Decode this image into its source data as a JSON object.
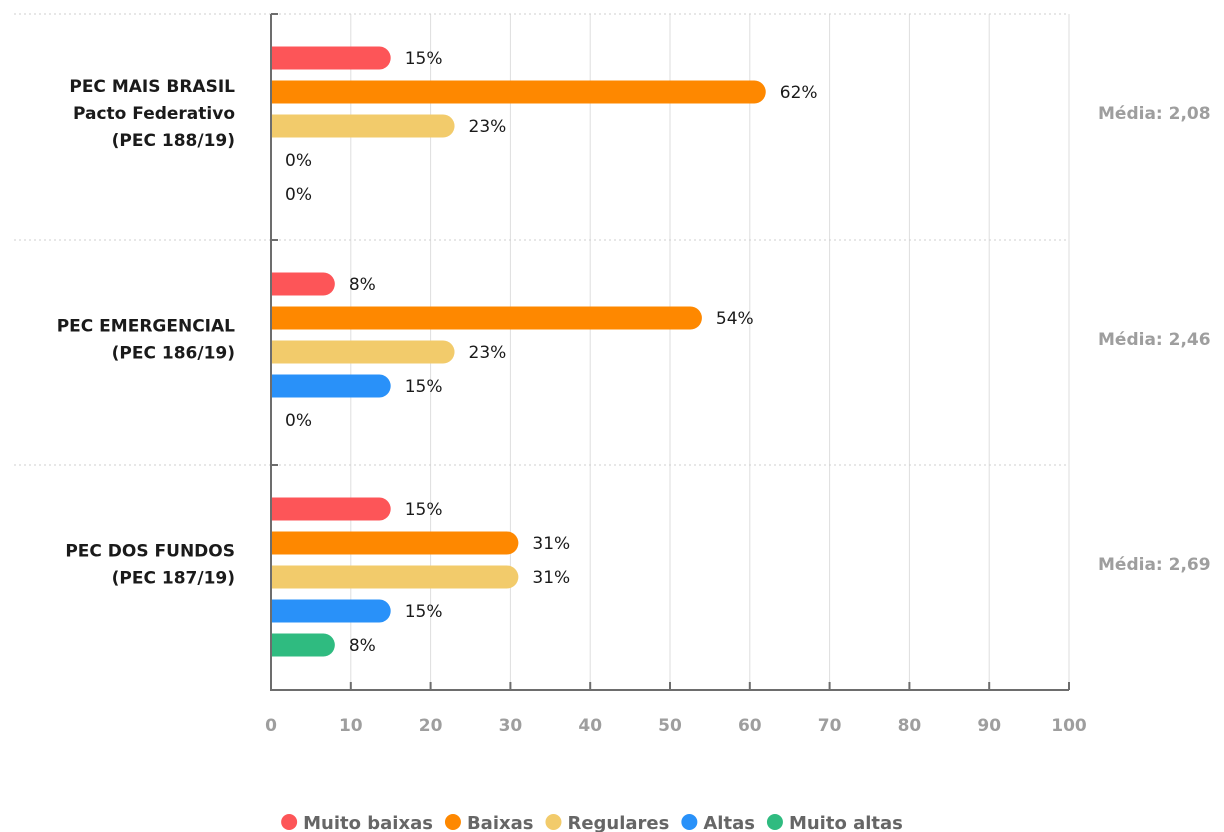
{
  "chart_data": {
    "type": "bar",
    "orientation": "horizontal",
    "categories": [
      {
        "lines": [
          "PEC MAIS BRASIL",
          "Pacto Federativo",
          "(PEC 188/19)"
        ],
        "media": "Média: 2,08"
      },
      {
        "lines": [
          "PEC EMERGENCIAL",
          "(PEC 186/19)"
        ],
        "media": "Média: 2,46"
      },
      {
        "lines": [
          "PEC DOS FUNDOS",
          "(PEC 187/19)"
        ],
        "media": "Média: 2,69"
      }
    ],
    "series": [
      {
        "name": "Muito baixas",
        "color": "#fd5558",
        "values": [
          15,
          8,
          15
        ]
      },
      {
        "name": "Baixas",
        "color": "#fe8800",
        "values": [
          62,
          54,
          31
        ]
      },
      {
        "name": "Regulares",
        "color": "#f2cb6b",
        "values": [
          23,
          23,
          31
        ]
      },
      {
        "name": "Altas",
        "color": "#2991f9",
        "values": [
          0,
          15,
          15
        ]
      },
      {
        "name": "Muito altas",
        "color": "#2fbb80",
        "values": [
          0,
          0,
          8
        ]
      }
    ],
    "value_suffix": "%",
    "xlim": [
      0,
      100
    ],
    "xticks": [
      0,
      10,
      20,
      30,
      40,
      50,
      60,
      70,
      80,
      90,
      100
    ],
    "grid": true,
    "legend_position": "bottom"
  }
}
